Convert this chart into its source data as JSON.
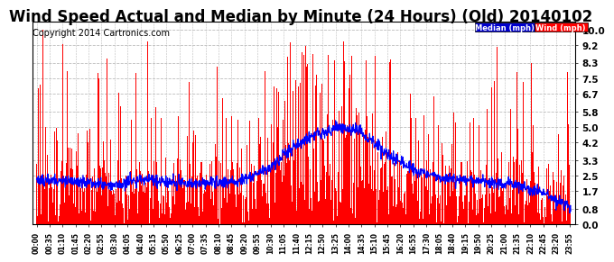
{
  "title": "Wind Speed Actual and Median by Minute (24 Hours) (Old) 20140102",
  "copyright": "Copyright 2014 Cartronics.com",
  "yticks": [
    0.0,
    0.8,
    1.7,
    2.5,
    3.3,
    4.2,
    5.0,
    5.8,
    6.7,
    7.5,
    8.3,
    9.2,
    10.0
  ],
  "ylim": [
    0.0,
    10.4
  ],
  "total_minutes": 1440,
  "wind_color": "#FF0000",
  "median_color": "#0000FF",
  "background_color": "#FFFFFF",
  "grid_color": "#BBBBBB",
  "legend_median_bg": "#0000CC",
  "legend_wind_bg": "#FF0000",
  "legend_text_color": "#FFFFFF",
  "title_fontsize": 12,
  "copyright_fontsize": 7,
  "seed": 12345
}
